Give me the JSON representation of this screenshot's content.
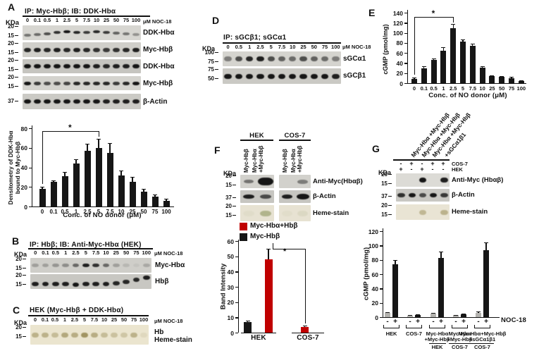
{
  "colors": {
    "accent_red": "#c00000",
    "bar_black": "#161616",
    "bar_gray": "#b3b2ae"
  },
  "panels": {
    "A": {
      "label": "A",
      "header": "IP: Myc-Hbβ; IB: DDK-Hbα",
      "kda_label": "KDa",
      "unit_label": "μM NOC-18",
      "lanes": [
        "0",
        "0.1",
        "0.5",
        "1",
        "2.5",
        "5",
        "7.5",
        "10",
        "25",
        "50",
        "75",
        "100"
      ],
      "strips": [
        {
          "label": "DDK-Hbα",
          "kda": [
            "20",
            "15"
          ],
          "bg": "#d7d6d1",
          "h": 4,
          "bands": [
            0.5,
            0.55,
            0.7,
            0.85,
            1,
            0.9,
            0.8,
            0.9,
            0.8,
            0.6,
            0.5,
            0.35
          ],
          "dy": [
            3,
            2,
            1,
            -1,
            -2,
            -1,
            -1,
            -2,
            -1,
            0,
            1,
            2
          ]
        },
        {
          "label": "Myc-Hbβ",
          "kda": [
            "20",
            "15"
          ],
          "bg": "#d0cfca",
          "h": 6,
          "bands": [
            0.9,
            0.95,
            0.9,
            0.95,
            0.9,
            0.95,
            0.9,
            0.85,
            0.8,
            0.85,
            0.9,
            0.95
          ]
        },
        {
          "label": "DDK-Hbα",
          "kda": [
            "20",
            "15"
          ],
          "bg": "#c6c5c0",
          "h": 6,
          "bands": [
            1,
            1,
            1,
            1,
            1,
            1,
            1,
            0.95,
            0.9,
            0.95,
            0.95,
            1
          ]
        },
        {
          "label": "Myc-Hbβ",
          "kda": [
            "20",
            "15"
          ],
          "bg": "#d4d3ce",
          "h": 5,
          "bands": [
            1,
            0.8,
            0.7,
            0.7,
            0.75,
            0.9,
            0.9,
            0.9,
            0.9,
            0.8,
            0.9,
            1
          ]
        },
        {
          "label": "β-Actin",
          "kda": [
            "37"
          ],
          "bg": "#cbcac5",
          "h": 6,
          "bands": [
            1,
            1,
            1,
            1,
            1,
            1,
            1,
            1,
            0.95,
            0.95,
            0.95,
            0.95
          ]
        }
      ]
    },
    "B": {
      "label": "B",
      "header": "IP: Hbβ; IB: Anti-Myc-Hbα (HEK)",
      "kda_label": "KDa",
      "unit_label": "μM NOC-18",
      "lanes": [
        "0",
        "0.1",
        "0.5",
        "1",
        "2.5",
        "5",
        "7.5",
        "10",
        "25",
        "50",
        "75",
        "100"
      ],
      "strips": [
        {
          "label": "Myc-Hbα",
          "kda": [
            "20",
            "15"
          ],
          "bg": "#cfcec9",
          "h": 5,
          "bands": [
            0.25,
            0.25,
            0.3,
            0.35,
            0.55,
            0.95,
            0.85,
            0.55,
            0.25,
            0.12,
            0.05,
            0.2
          ]
        },
        {
          "label": "Hbβ",
          "kda": [
            "20",
            "15"
          ],
          "bg": "#c8c7c2",
          "h": 6,
          "bands": [
            0.95,
            0.95,
            0.95,
            0.95,
            1,
            0.95,
            0.95,
            0.95,
            0.9,
            0.9,
            0.9,
            0.95
          ],
          "dy": [
            3,
            3,
            3,
            3,
            4,
            3,
            3,
            3,
            2,
            0,
            -3,
            -6
          ]
        }
      ]
    },
    "C": {
      "label": "C",
      "header": "HEK (Myc-Hbβ + DDK-Hbα)",
      "kda_label": "KDa",
      "unit_label": "μM NOC-18",
      "lanes": [
        "0",
        "0.1",
        "0.5",
        "1",
        "2.5",
        "5",
        "7.5",
        "10",
        "25",
        "50",
        "75",
        "100"
      ],
      "right_labels": [
        "Hb",
        "Heme-stain"
      ],
      "strip": {
        "kda": [
          "20",
          "15"
        ],
        "bg": "#ebe5cf",
        "band_color": "#8f8147",
        "h": 7,
        "bands": [
          0.5,
          0.5,
          0.4,
          0.6,
          0.55,
          0.8,
          0.55,
          0.4,
          0.35,
          0.3,
          0.5,
          0.12
        ]
      }
    },
    "D": {
      "label": "D",
      "header": "IP: sGCβ1; sGCα1",
      "kda_label": "KDa",
      "unit_label": "μM NOC-18",
      "lanes": [
        "0",
        "0.5",
        "1",
        "2.5",
        "5",
        "7.5",
        "10",
        "25",
        "50",
        "75",
        "100"
      ],
      "strips": [
        {
          "label": "sGCα1",
          "kda": [
            "100",
            "75"
          ],
          "bg": "#d5d4cf",
          "h": 7,
          "bands": [
            0.45,
            0.7,
            0.9,
            0.95,
            0.7,
            0.6,
            0.55,
            0.7,
            0.6,
            0.55,
            0.45
          ]
        },
        {
          "label": "sGCβ1",
          "kda": [
            "75",
            "50"
          ],
          "bg": "#cac9c4",
          "h": 7,
          "bands": [
            1,
            1,
            1,
            1,
            1,
            1,
            1,
            1,
            1,
            1,
            0.95
          ]
        }
      ]
    },
    "E": {
      "label": "E"
    },
    "F": {
      "label": "F",
      "kda_label": "KDa",
      "col_groups": [
        "HEK",
        "COS-7"
      ],
      "lane_lines": [
        "Myc-Hbβ",
        "Myc-Hbα",
        "+Myc-Hbβ"
      ],
      "strips": [
        {
          "label": "Anti-Myc(Hbαβ)",
          "kda": [
            "20",
            "15"
          ],
          "bg": "#d2d1cc",
          "h": 6,
          "groups": [
            [
              0.5,
              1
            ],
            [
              0,
              0.45
            ]
          ],
          "scales": [
            [
              0.9,
              1.9
            ],
            [
              1,
              1
            ]
          ]
        },
        {
          "label": "β-Actin",
          "kda": [
            "37"
          ],
          "bg": "#c7c6c1",
          "h": 6,
          "groups": [
            [
              0.95,
              0.7
            ],
            [
              0.95,
              1
            ]
          ],
          "scales": [
            [
              1,
              1
            ],
            [
              1,
              1.2
            ]
          ]
        },
        {
          "label": "Heme-stain",
          "kda": [
            "20",
            "15"
          ],
          "bg": "#e7e2d2",
          "band_color": "#7c8748",
          "h": 8,
          "groups": [
            [
              0.06,
              0.5
            ],
            [
              0.05,
              0.1
            ]
          ]
        }
      ]
    },
    "G": {
      "label": "G",
      "kda_label": "KDa",
      "diag_labels": [
        "Myc-Hbα +Myc-Hbβ",
        "Myc-Hbα +Myc-Hbβ",
        "Myc-Hbα +Myc-Hbβ",
        "+sGCα1β1"
      ],
      "rows": [
        {
          "label": "COS-7",
          "signs": [
            "-",
            "+",
            "-",
            "+",
            "+"
          ]
        },
        {
          "label": "HEK",
          "signs": [
            "+",
            "-",
            "+",
            "-",
            "-"
          ]
        }
      ],
      "strips": [
        {
          "label": "Anti-Myc (Hbαβ)",
          "kda": [
            "20",
            "15"
          ],
          "bg": "#dcdbd6",
          "h": 7,
          "bands": [
            0,
            0,
            1,
            0,
            0.95
          ]
        },
        {
          "label": "β-Actin",
          "kda": [
            "37"
          ],
          "bg": "#c9c8c3",
          "h": 6,
          "bands": [
            0.85,
            1,
            0.7,
            1,
            0.8
          ]
        },
        {
          "label": "Heme-stain",
          "kda": [
            "20",
            "15"
          ],
          "bg": "#e9e4d4",
          "band_color": "#8f8147",
          "h": 7,
          "bands": [
            0,
            0,
            0.45,
            0,
            0.5
          ]
        }
      ]
    }
  },
  "chart_data": [
    {
      "id": "A-densitometry",
      "type": "bar",
      "ylabel_lines": [
        "Densitometry of DDK-Hbα",
        "bound to Myc-Hbβ"
      ],
      "xlabel": "Conc. of NO donor (μM)",
      "ylim": [
        0,
        80
      ],
      "ytick_step": 20,
      "categories": [
        "0",
        "0.1",
        "0.5",
        "1",
        "2.5",
        "5",
        "7.5",
        "10",
        "25",
        "50",
        "75",
        "100"
      ],
      "values": [
        18,
        25,
        31,
        44,
        57,
        60,
        55,
        32,
        25,
        15,
        10,
        6
      ],
      "errors": [
        2,
        2,
        4,
        4,
        7,
        9,
        10,
        5,
        5,
        3,
        2,
        2
      ],
      "bar_color": "#161616",
      "bracket": {
        "from_index": 0,
        "to_index": 5,
        "label": "*"
      }
    },
    {
      "id": "E-cgmp",
      "type": "bar",
      "ylabel": "cGMP (pmol/mg)",
      "xlabel": "Conc. of NO donor (μM)",
      "ylim": [
        0,
        140
      ],
      "ytick_step": 20,
      "categories": [
        "0",
        "0.1",
        "0.5",
        "1",
        "2.5",
        "5",
        "7.5",
        "10",
        "25",
        "50",
        "75",
        "100"
      ],
      "values": [
        9,
        29,
        46,
        65,
        109,
        83,
        74,
        31,
        14,
        12,
        10,
        4
      ],
      "errors": [
        2,
        4,
        3,
        6,
        8,
        4,
        4,
        3,
        2,
        2,
        2,
        1
      ],
      "bar_color": "#161616",
      "bracket": {
        "from_index": 0,
        "to_index": 4,
        "label": "*"
      }
    },
    {
      "id": "F-band-intensity",
      "type": "grouped-bar",
      "ylabel": "Band Intensity",
      "ylim": [
        0,
        60
      ],
      "ytick_step": 10,
      "categories": [
        "HEK",
        "COS-7"
      ],
      "series": [
        {
          "name": "Myc-Hbβ",
          "color": "#161616",
          "values": [
            7,
            null
          ],
          "errors": [
            1,
            null
          ]
        },
        {
          "name": "Myc-Hbα+Hbβ",
          "color": "#c00000",
          "values": [
            48,
            3.5
          ],
          "errors": [
            7,
            1
          ]
        }
      ],
      "legend": [
        {
          "label": "Myc-Hbα+Hbβ",
          "color": "#c00000"
        },
        {
          "label": "Myc-Hbβ",
          "color": "#161616"
        }
      ],
      "sig_label": "*"
    },
    {
      "id": "G-cgmp",
      "type": "grouped-bar",
      "ylabel": "cGMP (pmol/mg)",
      "ylim": [
        0,
        120
      ],
      "ytick_step": 20,
      "condition_label": "NOC-18",
      "bar_signs": [
        "-",
        "+"
      ],
      "minus_color": "#b3b2ae",
      "plus_color": "#161616",
      "groups": [
        {
          "label_lines": [
            "HEK"
          ],
          "sub": "",
          "minus": 6,
          "minus_err": 1,
          "plus": 74,
          "plus_err": 6
        },
        {
          "label_lines": [
            "COS-7"
          ],
          "sub": "",
          "minus": 2,
          "minus_err": 0.5,
          "plus": 3,
          "plus_err": 1
        },
        {
          "label_lines": [
            "Myc-Hbα",
            "+Myc-Hbβ"
          ],
          "sub": "HEK",
          "minus": 5,
          "minus_err": 1,
          "plus": 83,
          "plus_err": 8
        },
        {
          "label_lines": [
            "Myc-Hbα",
            "+Myc-Hbβ"
          ],
          "sub": "COS-7",
          "minus": 2.5,
          "minus_err": 0.5,
          "plus": 4,
          "plus_err": 1
        },
        {
          "label_lines": [
            "Myc-Hbα+Myc-Hbβ",
            "+sGCα1β1"
          ],
          "sub": "COS-7",
          "minus": 6,
          "minus_err": 1.5,
          "plus": 93,
          "plus_err": 11
        }
      ]
    }
  ]
}
